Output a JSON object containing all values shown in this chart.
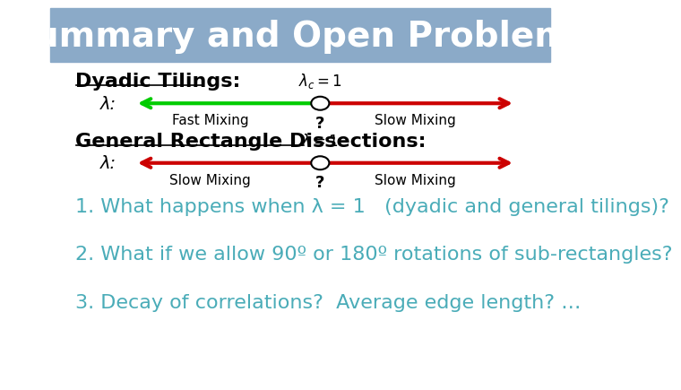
{
  "title": "Summary and Open Problems",
  "title_bg_color": "#8BAAC8",
  "title_text_color": "#FFFFFF",
  "title_fontsize": 28,
  "bg_color": "#FFFFFF",
  "section1_label": "Dyadic Tilings:",
  "section1_lambda_label": "λ:",
  "section1_above_label": "λ_c = 1",
  "section1_left_text": "Fast Mixing",
  "section1_right_text": "Slow Mixing",
  "section1_question": "?",
  "section1_left_color": "#00CC00",
  "section1_right_color": "#CC0000",
  "section2_label": "General Rectangle Dissections:",
  "section2_lambda_label": "λ:",
  "section2_above_label": "λ = 1",
  "section2_left_text": "Slow Mixing",
  "section2_right_text": "Slow Mixing",
  "section2_question": "?",
  "section2_left_color": "#CC0000",
  "section2_right_color": "#CC0000",
  "text_color": "#4AACB8",
  "section_label_color": "#000000",
  "q1": "1. What happens when λ = 1   (dyadic and general tilings)?",
  "q2": "2. What if we allow 90º or 180º rotations of sub-rectangles?",
  "q3": "3. Decay of correlations?  Average edge length? …",
  "questions_fontsize": 16,
  "section_fontsize": 14
}
